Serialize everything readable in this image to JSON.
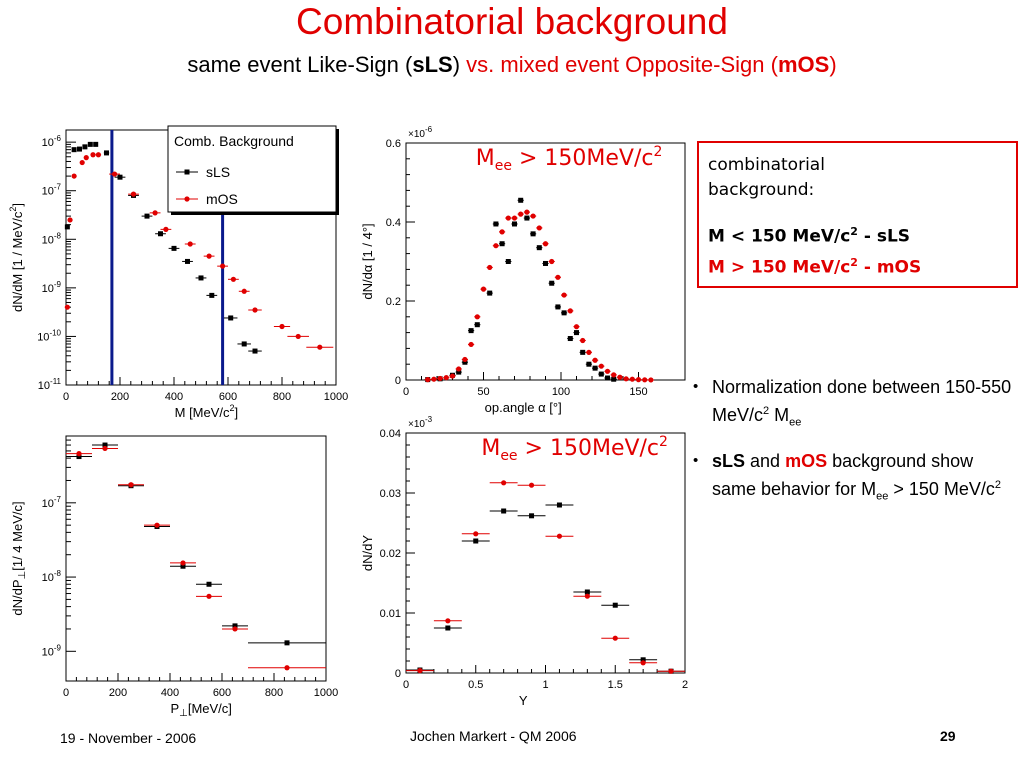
{
  "title": "Combinatorial background",
  "subtitle": {
    "part1": "same event Like-Sign (",
    "sls": "sLS",
    "part2": ")",
    "part3": " vs. mixed event Opposite-Sign (",
    "mos": "mOS",
    "part4": ")"
  },
  "colors": {
    "accent": "#e00000",
    "sLS": "#000000",
    "mOS": "#e00000",
    "cut_line": "#0a1a8c",
    "box": "#e00000"
  },
  "callout": {
    "line1": "combinatorial",
    "line2": "background:",
    "row_sls": "M < 150 MeV/c",
    "row_sls_tail": " - sLS",
    "row_mos": "M > 150 MeV/c",
    "row_mos_tail": " - mOS",
    "sup": "2"
  },
  "bullets": [
    {
      "text": "Normalization done between 150-550 MeV/c",
      "sup": "2",
      "tail": " M",
      "sub": "ee"
    },
    {
      "sls": "sLS",
      "and": " and ",
      "mos": "mOS",
      "rest": " background show same behavior for M",
      "sub": "ee",
      "rest2": " > 150 MeV/c",
      "sup": "2"
    }
  ],
  "footer": {
    "date": "19 - November - 2006",
    "author": "Jochen Markert - QM 2006",
    "page": "29"
  },
  "chart_data": [
    {
      "id": "mass",
      "type": "scatter",
      "xlabel": "M [MeV/c",
      "xlabel_sup": "2",
      "xlabel_tail": "]",
      "ylabel": "dN/dM [1 / MeV/c",
      "ylabel_sup": "2",
      "ylabel_tail": "]",
      "xlim": [
        0,
        1000
      ],
      "ylog": true,
      "ylim_exp": [
        -11,
        -5.75
      ],
      "xticks": [
        0,
        200,
        400,
        600,
        800,
        1000
      ],
      "xtick_labels": [
        "0",
        "200",
        "400",
        "600",
        "800",
        "1000"
      ],
      "yticks_exp": [
        -11,
        -10,
        -9,
        -8,
        -7,
        -6
      ],
      "legend": {
        "title": "Comb. Background",
        "entries": [
          "sLS",
          "mOS"
        ],
        "position": "top-right"
      },
      "vlines": [
        170,
        580
      ],
      "series": [
        {
          "name": "sLS",
          "color": "#000000",
          "marker": "square",
          "points": [
            [
              5,
              1.8e-08,
              5
            ],
            [
              30,
              7e-07,
              5
            ],
            [
              50,
              7.2e-07,
              5
            ],
            [
              70,
              8e-07,
              5
            ],
            [
              90,
              9e-07,
              5
            ],
            [
              110,
              9e-07,
              5
            ],
            [
              150,
              6e-07,
              10
            ],
            [
              200,
              1.9e-07,
              20
            ],
            [
              250,
              8e-08,
              20
            ],
            [
              300,
              3e-08,
              20
            ],
            [
              350,
              1.3e-08,
              20
            ],
            [
              400,
              6.5e-09,
              20
            ],
            [
              450,
              3.5e-09,
              20
            ],
            [
              500,
              1.6e-09,
              20
            ],
            [
              540,
              7e-10,
              20
            ],
            [
              610,
              2.4e-10,
              25
            ],
            [
              660,
              7e-11,
              25
            ],
            [
              700,
              5e-11,
              25
            ]
          ]
        },
        {
          "name": "mOS",
          "color": "#e00000",
          "marker": "circle",
          "points": [
            [
              5,
              4e-10,
              5
            ],
            [
              15,
              2.5e-08,
              5
            ],
            [
              30,
              2e-07,
              5
            ],
            [
              60,
              3.8e-07,
              5
            ],
            [
              75,
              4.8e-07,
              5
            ],
            [
              100,
              5.5e-07,
              5
            ],
            [
              120,
              5.5e-07,
              10
            ],
            [
              180,
              2.2e-07,
              20
            ],
            [
              250,
              8.5e-08,
              20
            ],
            [
              330,
              3.5e-08,
              20
            ],
            [
              370,
              1.6e-08,
              20
            ],
            [
              460,
              8e-09,
              20
            ],
            [
              530,
              4.5e-09,
              20
            ],
            [
              580,
              2.8e-09,
              20
            ],
            [
              620,
              1.5e-09,
              20
            ],
            [
              660,
              8.5e-10,
              20
            ],
            [
              700,
              3.5e-10,
              25
            ],
            [
              800,
              1.6e-10,
              30
            ],
            [
              860,
              1e-10,
              40
            ],
            [
              940,
              6e-11,
              50
            ]
          ]
        }
      ]
    },
    {
      "id": "angle",
      "type": "scatter",
      "xlabel": "op.angle α [°]",
      "ylabel": "dN/dα [1 / 4°]",
      "xlim": [
        0,
        180
      ],
      "ylim": [
        0,
        0.6
      ],
      "yexp_label": "×10",
      "yexp_sup": "-6",
      "xticks": [
        0,
        50,
        100,
        150
      ],
      "xtick_labels": [
        "0",
        "50",
        "100",
        "150"
      ],
      "yticks": [
        0,
        0.2,
        0.4,
        0.6
      ],
      "ytick_labels": [
        "0",
        "0.2",
        "0.4",
        "0.6"
      ],
      "annotation": {
        "text": "M",
        "sub": "ee",
        "tail": " > 150MeV/c",
        "sup": "2"
      },
      "series": [
        {
          "name": "sLS",
          "color": "#000000",
          "marker": "square",
          "points": [
            [
              14,
              0.001,
              2
            ],
            [
              22,
              0.003,
              2
            ],
            [
              30,
              0.012,
              2
            ],
            [
              34,
              0.02,
              2
            ],
            [
              38,
              0.045,
              2
            ],
            [
              42,
              0.125,
              2
            ],
            [
              46,
              0.14,
              2
            ],
            [
              54,
              0.22,
              2
            ],
            [
              58,
              0.395,
              2
            ],
            [
              62,
              0.345,
              2
            ],
            [
              66,
              0.3,
              2
            ],
            [
              70,
              0.395,
              2
            ],
            [
              74,
              0.455,
              2
            ],
            [
              78,
              0.41,
              2
            ],
            [
              82,
              0.37,
              2
            ],
            [
              86,
              0.335,
              2
            ],
            [
              90,
              0.295,
              2
            ],
            [
              94,
              0.245,
              2
            ],
            [
              98,
              0.185,
              2
            ],
            [
              102,
              0.17,
              2
            ],
            [
              106,
              0.105,
              2
            ],
            [
              110,
              0.12,
              2
            ],
            [
              114,
              0.07,
              2
            ],
            [
              118,
              0.04,
              2
            ],
            [
              122,
              0.03,
              2
            ],
            [
              126,
              0.015,
              2
            ],
            [
              130,
              0.005,
              2
            ],
            [
              134,
              0.002,
              2
            ]
          ]
        },
        {
          "name": "mOS",
          "color": "#e00000",
          "marker": "circle",
          "points": [
            [
              14,
              0.001,
              2
            ],
            [
              18,
              0.002,
              2
            ],
            [
              22,
              0.004,
              2
            ],
            [
              26,
              0.006,
              2
            ],
            [
              30,
              0.01,
              2
            ],
            [
              34,
              0.028,
              2
            ],
            [
              38,
              0.052,
              2
            ],
            [
              42,
              0.09,
              2
            ],
            [
              46,
              0.16,
              2
            ],
            [
              50,
              0.23,
              2
            ],
            [
              54,
              0.285,
              2
            ],
            [
              58,
              0.34,
              2
            ],
            [
              62,
              0.375,
              2
            ],
            [
              66,
              0.41,
              2
            ],
            [
              70,
              0.41,
              2
            ],
            [
              74,
              0.42,
              2
            ],
            [
              78,
              0.425,
              2
            ],
            [
              82,
              0.415,
              2
            ],
            [
              86,
              0.385,
              2
            ],
            [
              90,
              0.345,
              2
            ],
            [
              94,
              0.3,
              2
            ],
            [
              98,
              0.26,
              2
            ],
            [
              102,
              0.215,
              2
            ],
            [
              106,
              0.175,
              2
            ],
            [
              110,
              0.135,
              2
            ],
            [
              114,
              0.1,
              2
            ],
            [
              118,
              0.07,
              2
            ],
            [
              122,
              0.05,
              2
            ],
            [
              126,
              0.035,
              2
            ],
            [
              130,
              0.022,
              2
            ],
            [
              134,
              0.013,
              2
            ],
            [
              138,
              0.007,
              2
            ],
            [
              142,
              0.003,
              2
            ],
            [
              146,
              0.002,
              2
            ],
            [
              150,
              0.001,
              2
            ],
            [
              154,
              0.0005,
              2
            ],
            [
              158,
              0.0002,
              2
            ]
          ]
        }
      ]
    },
    {
      "id": "pt",
      "type": "scatter",
      "xlabel": "P",
      "xlabel_sub": "⊥",
      "xlabel_tail": "[MeV/c]",
      "ylabel": "dN/dP",
      "ylabel_sub": "⊥",
      "ylabel_tail": "[1/ 4 MeV/c]",
      "xlim": [
        0,
        1000
      ],
      "ylog": true,
      "ylim_exp": [
        -9.4,
        -6.1
      ],
      "xticks": [
        0,
        200,
        400,
        600,
        800,
        1000
      ],
      "xtick_labels": [
        "0",
        "200",
        "400",
        "600",
        "800",
        "1000"
      ],
      "yticks_exp": [
        -9,
        -8,
        -7,
        -6
      ],
      "series": [
        {
          "name": "sLS",
          "color": "#000000",
          "marker": "square",
          "points": [
            [
              50,
              4.2e-07,
              50
            ],
            [
              150,
              6e-07,
              50
            ],
            [
              250,
              1.7e-07,
              50
            ],
            [
              350,
              4.8e-08,
              50
            ],
            [
              450,
              1.4e-08,
              50
            ],
            [
              550,
              8e-09,
              50
            ],
            [
              650,
              2.2e-09,
              50
            ],
            [
              850,
              1.3e-09,
              150
            ]
          ]
        },
        {
          "name": "mOS",
          "color": "#e00000",
          "marker": "circle",
          "points": [
            [
              50,
              4.6e-07,
              50
            ],
            [
              150,
              5.4e-07,
              50
            ],
            [
              250,
              1.75e-07,
              50
            ],
            [
              350,
              5e-08,
              50
            ],
            [
              450,
              1.55e-08,
              50
            ],
            [
              550,
              5.5e-09,
              50
            ],
            [
              650,
              2e-09,
              50
            ],
            [
              850,
              6e-10,
              150
            ]
          ]
        }
      ]
    },
    {
      "id": "rapidity",
      "type": "scatter",
      "xlabel": "Y",
      "ylabel": "dN/dY",
      "xlim": [
        0,
        2
      ],
      "ylim": [
        0,
        0.04
      ],
      "yexp_label": "×10",
      "yexp_sup": "-3",
      "xticks": [
        0,
        0.5,
        1,
        1.5,
        2
      ],
      "xtick_labels": [
        "0",
        "0.5",
        "1",
        "1.5",
        "2"
      ],
      "yticks": [
        0,
        0.01,
        0.02,
        0.03,
        0.04
      ],
      "ytick_labels": [
        "0",
        "0.01",
        "0.02",
        "0.03",
        "0.04"
      ],
      "annotation": {
        "text": "M",
        "sub": "ee",
        "tail": " > 150MeV/c",
        "sup": "2"
      },
      "series": [
        {
          "name": "sLS",
          "color": "#000000",
          "marker": "square",
          "points": [
            [
              0.1,
              0.0005,
              0.1
            ],
            [
              0.3,
              0.0075,
              0.1
            ],
            [
              0.5,
              0.022,
              0.1
            ],
            [
              0.7,
              0.027,
              0.1
            ],
            [
              0.9,
              0.0262,
              0.1
            ],
            [
              1.1,
              0.028,
              0.1
            ],
            [
              1.3,
              0.0135,
              0.1
            ],
            [
              1.5,
              0.0113,
              0.1
            ],
            [
              1.7,
              0.0022,
              0.1
            ],
            [
              1.9,
              0.0003,
              0.1
            ]
          ]
        },
        {
          "name": "mOS",
          "color": "#e00000",
          "marker": "circle",
          "points": [
            [
              0.1,
              0.0004,
              0.1
            ],
            [
              0.3,
              0.0087,
              0.1
            ],
            [
              0.5,
              0.0232,
              0.1
            ],
            [
              0.7,
              0.0317,
              0.1
            ],
            [
              0.9,
              0.0313,
              0.1
            ],
            [
              1.1,
              0.0228,
              0.1
            ],
            [
              1.3,
              0.0128,
              0.1
            ],
            [
              1.5,
              0.0058,
              0.1
            ],
            [
              1.7,
              0.0017,
              0.1
            ],
            [
              1.9,
              0.0003,
              0.1
            ]
          ]
        }
      ]
    }
  ]
}
